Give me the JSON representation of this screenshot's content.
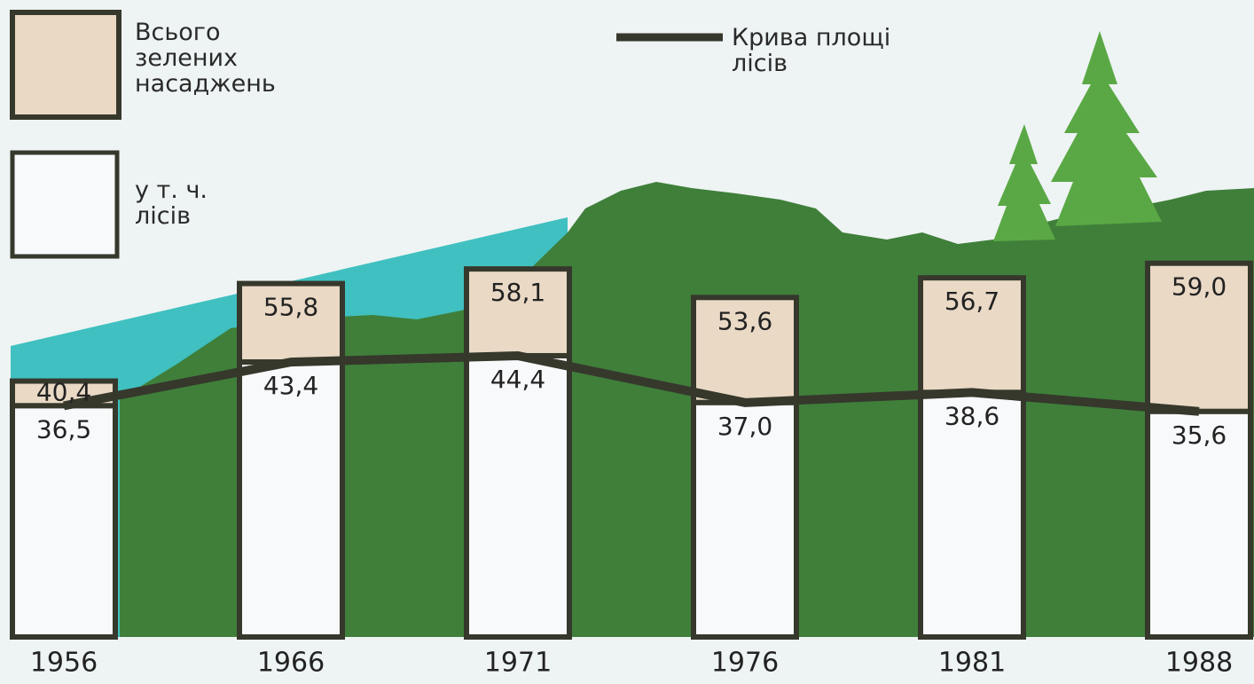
{
  "chart_data": {
    "type": "bar",
    "categories": [
      "1956",
      "1966",
      "1971",
      "1976",
      "1981",
      "1988"
    ],
    "series": [
      {
        "name": "Всього зелених насаджень",
        "color": "#e9d9c5",
        "values": [
          40.4,
          55.8,
          58.1,
          53.6,
          56.7,
          59.0
        ],
        "value_labels": [
          "40,4",
          "55,8",
          "58,1",
          "53,6",
          "56,7",
          "59,0"
        ]
      },
      {
        "name": "у т. ч. лісів",
        "color": "#f8f9fb",
        "values": [
          36.5,
          43.4,
          44.4,
          37.0,
          38.6,
          35.6
        ],
        "value_labels": [
          "36,5",
          "43,4",
          "44,4",
          "37,0",
          "38,6",
          "35,6"
        ]
      }
    ],
    "line": {
      "name": "Крива площі лісів",
      "color": "#36382c"
    },
    "ylim": [
      0,
      100
    ]
  }
}
